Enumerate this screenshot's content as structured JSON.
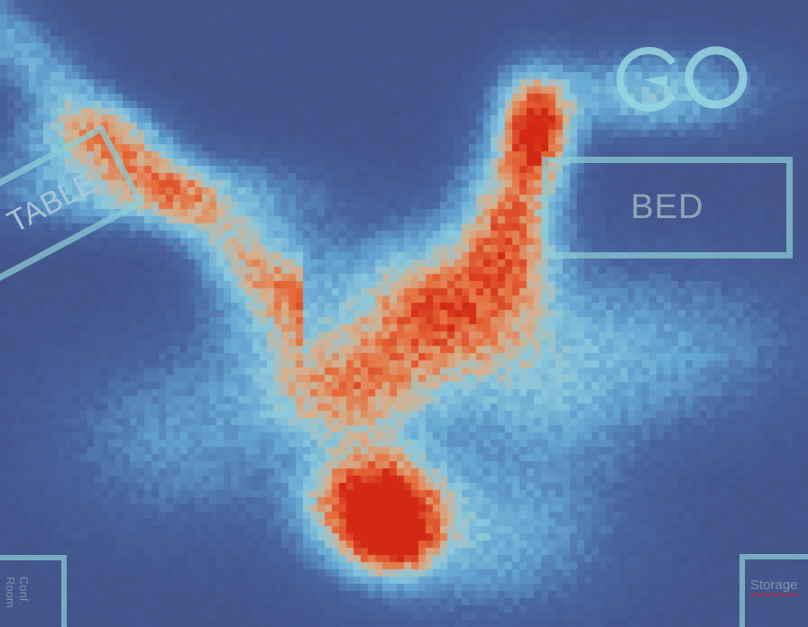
{
  "labels": {
    "bed": "BED",
    "table": "TABLE",
    "conf_line1": "Conf.",
    "conf_line2": "Room",
    "storage": "Storage"
  },
  "colors": {
    "background": "#424a78",
    "label_outline": "#8ccdd7",
    "heat_low": "#4a5a90",
    "heat_mid": "#7ec6de",
    "heat_high": "#e0461e"
  },
  "icons": {
    "logo": "pacman-and-circle-logo"
  }
}
